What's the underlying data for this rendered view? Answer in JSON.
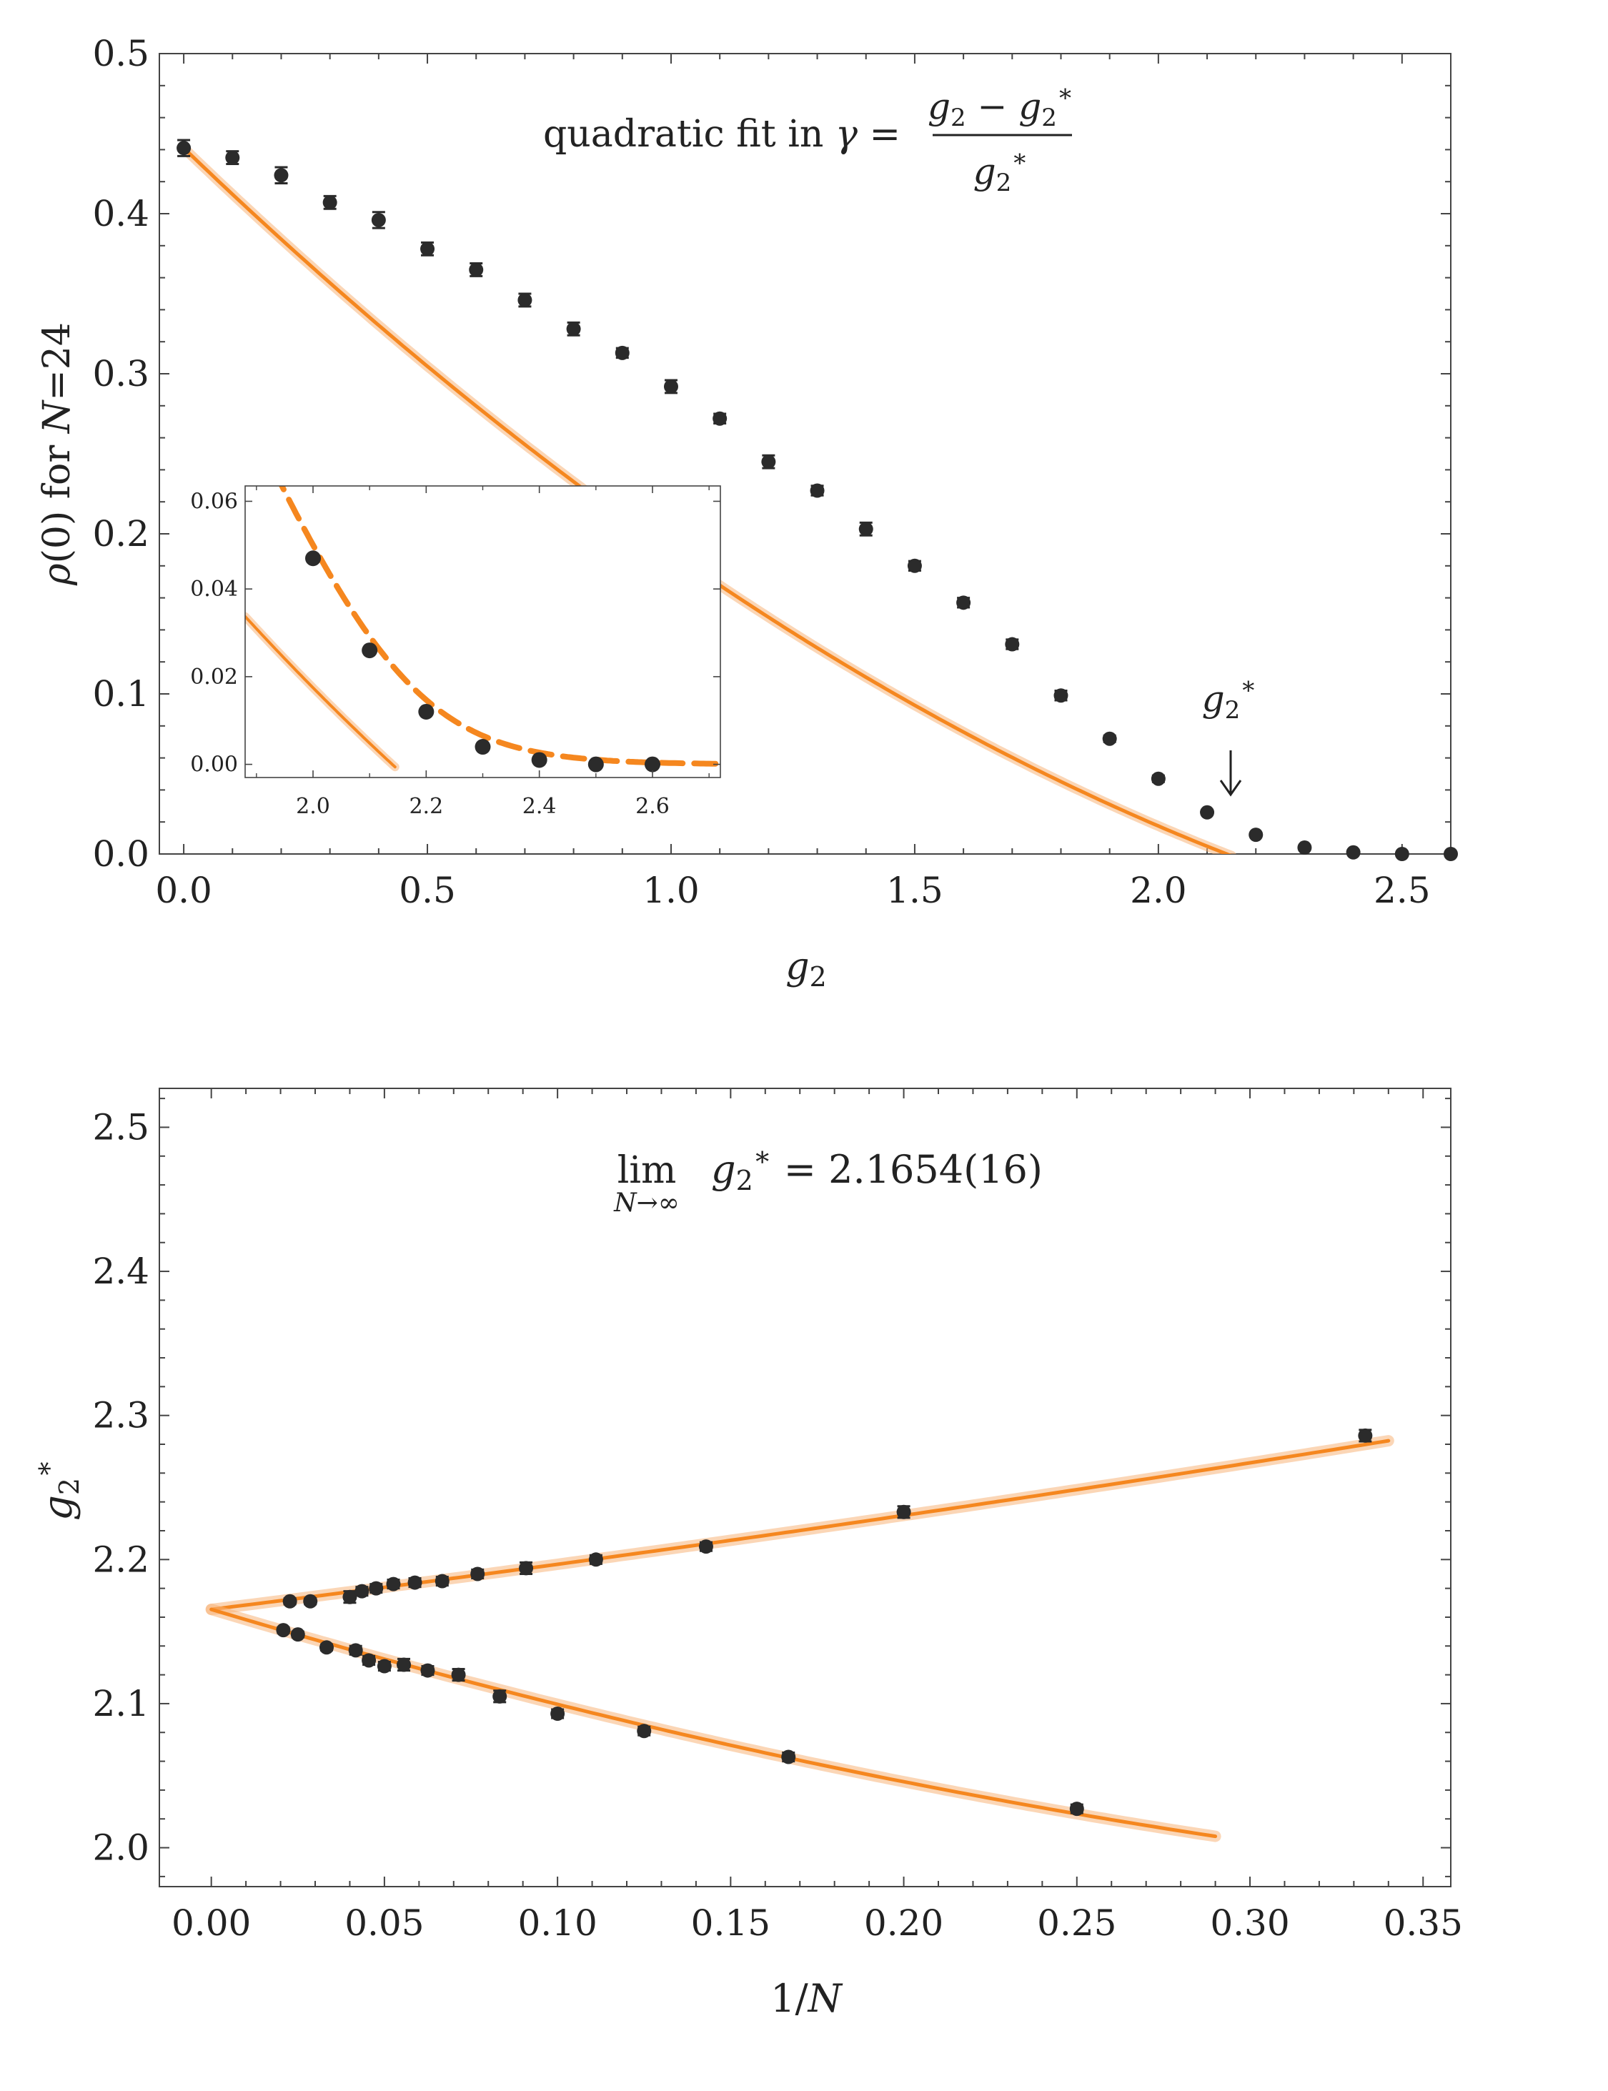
{
  "chart_data": [
    {
      "type": "scatter",
      "name": "top",
      "xlabel": "g2",
      "ylabel": "ρ(0) for N=24",
      "xlim": [
        -0.05,
        2.6
      ],
      "ylim": [
        0.0,
        0.5
      ],
      "xticks": [
        "0.0",
        "0.5",
        "1.0",
        "1.5",
        "2.0",
        "2.5"
      ],
      "xtick_values": [
        0.0,
        0.5,
        1.0,
        1.5,
        2.0,
        2.5
      ],
      "yticks": [
        "0.0",
        "0.1",
        "0.2",
        "0.3",
        "0.4",
        "0.5"
      ],
      "ytick_values": [
        0.0,
        0.1,
        0.2,
        0.3,
        0.4,
        0.5
      ],
      "annotation": "quadratic fit in γ = (g2 − g2*)/g2*",
      "marker_label": "g2*",
      "series": [
        {
          "name": "data",
          "x": [
            0.0,
            0.1,
            0.2,
            0.3,
            0.4,
            0.5,
            0.6,
            0.7,
            0.8,
            0.9,
            1.0,
            1.1,
            1.2,
            1.3,
            1.4,
            1.5,
            1.6,
            1.7,
            1.8,
            1.9,
            2.0,
            2.1,
            2.2,
            2.3,
            2.4,
            2.5,
            2.6
          ],
          "y": [
            0.441,
            0.435,
            0.424,
            0.407,
            0.396,
            0.378,
            0.365,
            0.346,
            0.328,
            0.313,
            0.292,
            0.272,
            0.245,
            0.227,
            0.203,
            0.18,
            0.157,
            0.131,
            0.099,
            0.072,
            0.047,
            0.026,
            0.012,
            0.004,
            0.001,
            0.0,
            0.0
          ],
          "yerr": [
            0.005,
            0.004,
            0.005,
            0.004,
            0.005,
            0.004,
            0.004,
            0.004,
            0.004,
            0.003,
            0.004,
            0.003,
            0.004,
            0.003,
            0.004,
            0.003,
            0.003,
            0.003,
            0.003,
            0.002,
            0.002,
            0.0,
            0.0,
            0.0,
            0.0,
            0.0,
            0.0
          ]
        },
        {
          "name": "quadratic fit",
          "g2_star": 2.14,
          "a": 0.441,
          "x_range": [
            0.0,
            2.15
          ]
        }
      ],
      "inset": {
        "xlim": [
          1.88,
          2.72
        ],
        "ylim": [
          -0.003,
          0.0635
        ],
        "xticks": [
          "2.0",
          "2.2",
          "2.4",
          "2.6"
        ],
        "xtick_values": [
          2.0,
          2.2,
          2.4,
          2.6
        ],
        "yticks": [
          "0.00",
          "0.02",
          "0.04",
          "0.06"
        ],
        "ytick_values": [
          0.0,
          0.02,
          0.04,
          0.06
        ],
        "x": [
          2.0,
          2.1,
          2.2,
          2.3,
          2.4,
          2.5,
          2.6
        ],
        "y": [
          0.047,
          0.026,
          0.012,
          0.004,
          0.001,
          0.0,
          0.0
        ],
        "dashed_fit": {
          "name": "smooth fit",
          "x0": 1.88,
          "y0": 0.064,
          "x_knee": 2.15,
          "x_end": 2.72,
          "y_end": 0.0
        }
      }
    },
    {
      "type": "scatter",
      "name": "bottom",
      "xlabel": "1/N",
      "ylabel": "g2*",
      "xlim": [
        -0.015,
        0.358
      ],
      "ylim": [
        1.973,
        2.527
      ],
      "xticks": [
        "0.00",
        "0.05",
        "0.10",
        "0.15",
        "0.20",
        "0.25",
        "0.30",
        "0.35"
      ],
      "xtick_values": [
        0.0,
        0.05,
        0.1,
        0.15,
        0.2,
        0.25,
        0.3,
        0.35
      ],
      "yticks": [
        "2.0",
        "2.1",
        "2.2",
        "2.3",
        "2.4",
        "2.5"
      ],
      "ytick_values": [
        2.0,
        2.1,
        2.2,
        2.3,
        2.4,
        2.5
      ],
      "annotation_lim": "lim",
      "annotation_sub": "N→∞",
      "annotation_value": "g2* = 2.1654(16)",
      "series": [
        {
          "name": "odd N",
          "x": [
            0.0227,
            0.0286,
            0.04,
            0.0435,
            0.0476,
            0.0526,
            0.0588,
            0.0667,
            0.0769,
            0.0909,
            0.1111,
            0.1429,
            0.2,
            0.3333
          ],
          "y": [
            2.171,
            2.171,
            2.174,
            2.178,
            2.18,
            2.183,
            2.184,
            2.185,
            2.19,
            2.194,
            2.2,
            2.209,
            2.233,
            2.286
          ],
          "yerr": [
            0.002,
            0.002,
            0.004,
            0.003,
            0.003,
            0.003,
            0.003,
            0.003,
            0.003,
            0.004,
            0.003,
            0.003,
            0.004,
            0.004
          ]
        },
        {
          "name": "even N",
          "x": [
            0.0208,
            0.025,
            0.0333,
            0.0417,
            0.0455,
            0.05,
            0.0556,
            0.0625,
            0.0714,
            0.0833,
            0.1,
            0.125,
            0.1667,
            0.25
          ],
          "y": [
            2.151,
            2.148,
            2.139,
            2.137,
            2.13,
            2.126,
            2.127,
            2.123,
            2.12,
            2.105,
            2.093,
            2.081,
            2.063,
            2.027
          ],
          "yerr": [
            0.002,
            0.002,
            0.002,
            0.003,
            0.003,
            0.003,
            0.004,
            0.003,
            0.004,
            0.004,
            0.003,
            0.003,
            0.003,
            0.003
          ]
        },
        {
          "name": "fit odd N",
          "intercept": 2.1654,
          "slope": 0.3,
          "curv": 0.13,
          "x_range": [
            0.0,
            0.34
          ]
        },
        {
          "name": "fit even N",
          "intercept": 2.1654,
          "slope": -0.72,
          "curv": 0.61,
          "x_range": [
            0.0,
            0.29
          ]
        }
      ]
    }
  ]
}
